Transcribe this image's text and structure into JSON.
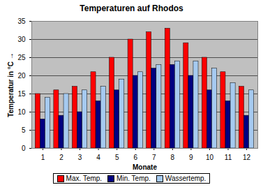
{
  "chart_data": {
    "type": "bar",
    "title": "Temperaturen auf Rhodos",
    "xlabel": "Monate",
    "ylabel": "Temperatur in °C",
    "categories": [
      "1",
      "2",
      "3",
      "4",
      "5",
      "6",
      "7",
      "8",
      "9",
      "10",
      "11",
      "12"
    ],
    "series": [
      {
        "name": "Max. Temp.",
        "color": "#ff0000",
        "values": [
          15,
          16,
          17,
          21,
          25,
          30,
          32,
          33,
          29,
          25,
          21,
          17
        ]
      },
      {
        "name": "Min. Temp.",
        "color": "#000080",
        "values": [
          8,
          9,
          10,
          13,
          16,
          20,
          22,
          23,
          20,
          16,
          13,
          9
        ]
      },
      {
        "name": "Wassertemp.",
        "color": "#a6caf0",
        "values": [
          14,
          15,
          16,
          17,
          19,
          21,
          23,
          24,
          24,
          22,
          18,
          16
        ]
      }
    ],
    "ylim": [
      0,
      35
    ],
    "yticks": [
      0,
      5,
      10,
      15,
      20,
      25,
      30,
      35
    ],
    "grid": true,
    "legend": "bottom"
  }
}
